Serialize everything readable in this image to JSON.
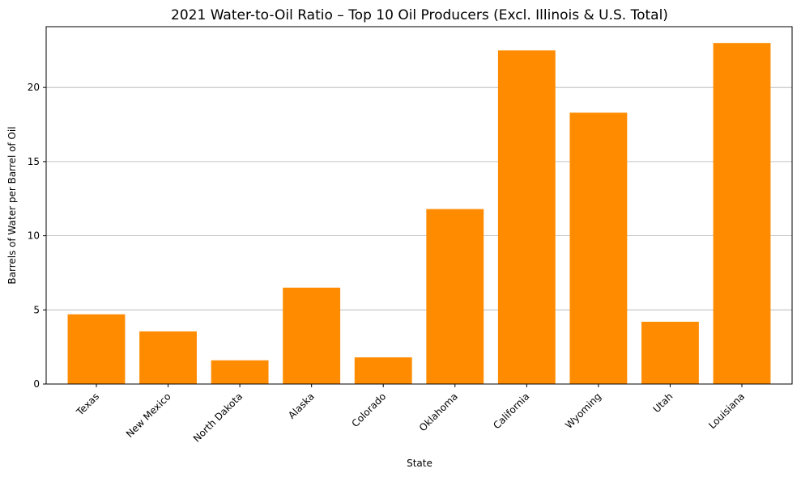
{
  "chart_data": {
    "type": "bar",
    "title": "2021 Water-to-Oil Ratio – Top 10 Oil Producers (Excl. Illinois & U.S. Total)",
    "xlabel": "State",
    "ylabel": "Barrels of Water per Barrel of Oil",
    "categories": [
      "Texas",
      "New Mexico",
      "North Dakota",
      "Alaska",
      "Colorado",
      "Oklahoma",
      "California",
      "Wyoming",
      "Utah",
      "Louisiana"
    ],
    "values": [
      4.7,
      3.55,
      1.6,
      6.5,
      1.8,
      11.8,
      22.5,
      18.3,
      4.2,
      23.0
    ],
    "ylim": [
      0,
      24.1
    ],
    "yticks": [
      0,
      5,
      10,
      15,
      20
    ],
    "ytick_labels": [
      "0",
      "5",
      "10",
      "15",
      "20"
    ],
    "bar_color": "#ff8c00",
    "grid": "y-axis only",
    "legend": "none"
  }
}
